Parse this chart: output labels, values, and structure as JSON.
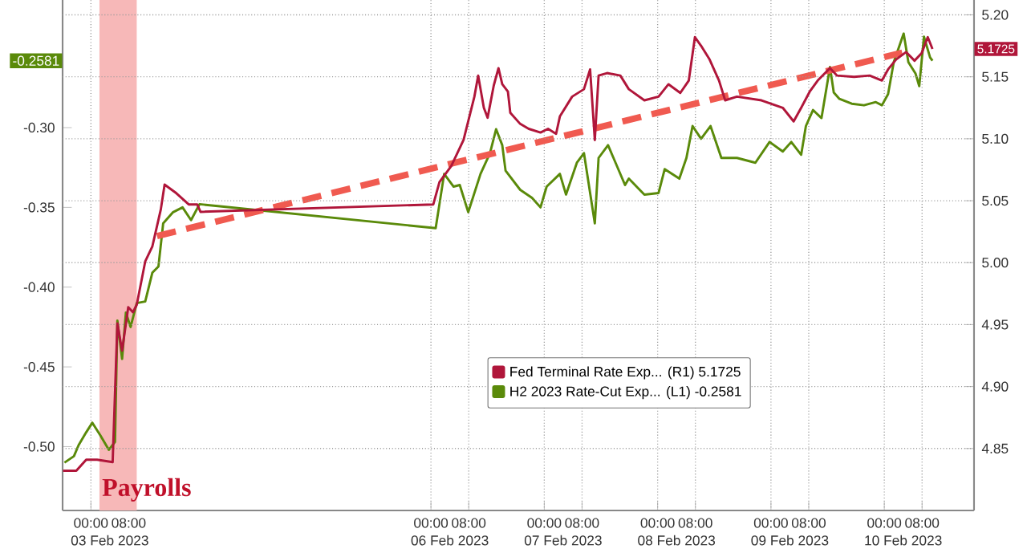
{
  "chart_data": {
    "type": "line",
    "xlim": [
      "2023-02-02T18:00",
      "2023-02-10T19:00"
    ],
    "xticks": [
      {
        "value": "2023-02-03T00:00",
        "label": "00:00"
      },
      {
        "value": "2023-02-03T08:00",
        "label": "08:00"
      },
      {
        "value": "2023-02-06T00:00",
        "label": "00:00"
      },
      {
        "value": "2023-02-06T08:00",
        "label": "08:00"
      },
      {
        "value": "2023-02-07T00:00",
        "label": "00:00"
      },
      {
        "value": "2023-02-07T08:00",
        "label": "08:00"
      },
      {
        "value": "2023-02-08T00:00",
        "label": "00:00"
      },
      {
        "value": "2023-02-08T08:00",
        "label": "08:00"
      },
      {
        "value": "2023-02-09T00:00",
        "label": "00:00"
      },
      {
        "value": "2023-02-09T08:00",
        "label": "08:00"
      },
      {
        "value": "2023-02-10T00:00",
        "label": "00:00"
      },
      {
        "value": "2023-02-10T08:00",
        "label": "08:00"
      }
    ],
    "x2lim": [
      "2023-02-02T18:00",
      "2023-02-10T19:00"
    ],
    "x2ticks": [
      {
        "value": "2023-02-03T04:00",
        "label": "03 Feb 2023"
      },
      {
        "value": "2023-02-06T04:00",
        "label": "06 Feb 2023"
      },
      {
        "value": "2023-02-07T04:00",
        "label": "07 Feb 2023"
      },
      {
        "value": "2023-02-08T04:00",
        "label": "08 Feb 2023"
      },
      {
        "value": "2023-02-09T04:00",
        "label": "09 Feb 2023"
      },
      {
        "value": "2023-02-10T04:00",
        "label": "10 Feb 2023"
      }
    ],
    "ylim": [
      -0.54,
      -0.22
    ],
    "yticks": [
      {
        "value": -0.5,
        "label": "-0.50"
      },
      {
        "value": -0.45,
        "label": "-0.45"
      },
      {
        "value": -0.4,
        "label": "-0.40"
      },
      {
        "value": -0.35,
        "label": "-0.35"
      },
      {
        "value": -0.3,
        "label": "-0.30"
      },
      -0.2581
    ],
    "y2lim": [
      4.8,
      5.212
    ],
    "y2ticks": [
      4.85,
      {
        "value": 4.9,
        "label": "4.90"
      },
      4.95,
      {
        "value": 5.0,
        "label": "5.00"
      },
      5.05,
      {
        "value": 5.1,
        "label": "5.10"
      },
      5.15,
      {
        "value": 5.2,
        "label": "5.20"
      },
      5.1725
    ],
    "grid": true,
    "legend": "bottom right",
    "bands": [
      {
        "axis": "x",
        "from": "2023-02-03T01:48",
        "to": "2023-02-03T09:42",
        "color": "#f7b8b8"
      }
    ],
    "annotations": [
      "Payrolls"
    ],
    "series": [
      {
        "name": "Fed Terminal Rate Exp... (R1) 5.1725",
        "color": "#b0163a",
        "axis": "y2",
        "x": [
          "2023-02-02T18:06",
          "2023-02-02T20:54",
          "2023-02-02T23:00",
          "2023-02-03T01:18",
          "2023-02-03T04:36",
          "2023-02-03T05:36",
          "2023-02-03T06:36",
          "2023-02-03T07:54",
          "2023-02-03T08:54",
          "2023-02-03T09:42",
          "2023-02-03T11:30",
          "2023-02-03T13:00",
          "2023-02-03T14:48",
          "2023-02-03T15:36",
          "2023-02-03T18:06",
          "2023-02-03T20:42",
          "2023-02-03T22:30",
          "2023-02-03T23:12",
          "2023-02-06T00:30",
          "2023-02-06T01:48",
          "2023-02-06T04:18",
          "2023-02-06T06:54",
          "2023-02-06T09:12",
          "2023-02-06T10:00",
          "2023-02-06T11:12",
          "2023-02-06T12:00",
          "2023-02-06T13:18",
          "2023-02-06T14:18",
          "2023-02-06T15:06",
          "2023-02-06T16:18",
          "2023-02-06T16:48",
          "2023-02-06T18:54",
          "2023-02-06T20:42",
          "2023-02-06T23:12",
          "2023-02-07T00:48",
          "2023-02-07T02:30",
          "2023-02-07T03:18",
          "2023-02-07T05:54",
          "2023-02-07T08:24",
          "2023-02-07T09:42",
          "2023-02-07T10:42",
          "2023-02-07T11:30",
          "2023-02-07T13:18",
          "2023-02-07T16:06",
          "2023-02-07T17:54",
          "2023-02-07T21:12",
          "2023-02-08T00:12",
          "2023-02-08T02:18",
          "2023-02-08T04:48",
          "2023-02-08T06:36",
          "2023-02-08T07:54",
          "2023-02-08T09:12",
          "2023-02-08T11:00",
          "2023-02-08T13:00",
          "2023-02-08T14:18",
          "2023-02-08T16:48",
          "2023-02-08T22:00",
          "2023-02-09T02:30",
          "2023-02-09T04:48",
          "2023-02-09T06:24",
          "2023-02-09T08:12",
          "2023-02-09T09:54",
          "2023-02-09T12:30",
          "2023-02-09T14:00",
          "2023-02-09T17:36",
          "2023-02-09T20:54",
          "2023-02-09T23:30",
          "2023-02-10T00:48",
          "2023-02-10T02:30",
          "2023-02-10T04:36",
          "2023-02-10T06:24",
          "2023-02-10T07:54",
          "2023-02-10T09:12",
          "2023-02-10T10:12"
        ],
        "values": [
          4.832,
          4.832,
          4.841,
          4.841,
          4.839,
          4.951,
          4.929,
          4.964,
          4.96,
          4.966,
          5.001,
          5.013,
          5.043,
          5.063,
          5.056,
          5.047,
          5.047,
          5.041,
          5.047,
          5.065,
          5.078,
          5.099,
          5.134,
          5.151,
          5.125,
          5.117,
          5.143,
          5.157,
          5.144,
          5.138,
          5.121,
          5.112,
          5.108,
          5.105,
          5.108,
          5.104,
          5.118,
          5.134,
          5.14,
          5.156,
          5.099,
          5.151,
          5.153,
          5.151,
          5.14,
          5.131,
          5.134,
          5.144,
          5.137,
          5.147,
          5.182,
          5.175,
          5.164,
          5.147,
          5.131,
          5.134,
          5.131,
          5.125,
          5.114,
          5.125,
          5.138,
          5.147,
          5.157,
          5.151,
          5.15,
          5.151,
          5.147,
          5.156,
          5.164,
          5.17,
          5.163,
          5.169,
          5.182,
          5.1725
        ]
      },
      {
        "name": "H2 2023 Rate-Cut Exp... (L1)   -0.2581",
        "color": "#5a8a0a",
        "x": [
          "2023-02-02T18:24",
          "2023-02-02T20:24",
          "2023-02-02T21:24",
          "2023-02-02T23:00",
          "2023-02-03T00:18",
          "2023-02-03T02:00",
          "2023-02-03T03:48",
          "2023-02-03T05:06",
          "2023-02-03T05:36",
          "2023-02-03T06:36",
          "2023-02-03T07:24",
          "2023-02-03T08:24",
          "2023-02-03T09:42",
          "2023-02-03T11:30",
          "2023-02-03T13:00",
          "2023-02-03T14:18",
          "2023-02-03T15:18",
          "2023-02-03T17:24",
          "2023-02-03T19:24",
          "2023-02-03T21:12",
          "2023-02-03T23:00",
          "2023-02-06T01:00",
          "2023-02-06T01:48",
          "2023-02-06T02:48",
          "2023-02-06T04:48",
          "2023-02-06T06:06",
          "2023-02-06T07:54",
          "2023-02-06T10:30",
          "2023-02-06T12:30",
          "2023-02-06T13:48",
          "2023-02-06T15:06",
          "2023-02-06T15:48",
          "2023-02-06T18:54",
          "2023-02-06T21:24",
          "2023-02-06T23:12",
          "2023-02-07T00:30",
          "2023-02-07T03:18",
          "2023-02-07T04:36",
          "2023-02-07T06:54",
          "2023-02-07T08:24",
          "2023-02-07T10:42",
          "2023-02-07T11:30",
          "2023-02-07T13:30",
          "2023-02-07T17:06",
          "2023-02-07T17:54",
          "2023-02-07T21:12",
          "2023-02-08T00:12",
          "2023-02-08T01:30",
          "2023-02-08T04:36",
          "2023-02-08T06:06",
          "2023-02-08T07:24",
          "2023-02-08T09:12",
          "2023-02-08T11:12",
          "2023-02-08T13:30",
          "2023-02-08T16:48",
          "2023-02-08T20:42",
          "2023-02-08T23:42",
          "2023-02-09T02:30",
          "2023-02-09T04:18",
          "2023-02-09T06:24",
          "2023-02-09T07:24",
          "2023-02-09T08:54",
          "2023-02-09T10:42",
          "2023-02-09T12:30",
          "2023-02-09T13:18",
          "2023-02-09T14:30",
          "2023-02-09T17:06",
          "2023-02-09T19:42",
          "2023-02-09T22:12",
          "2023-02-09T23:30",
          "2023-02-10T00:48",
          "2023-02-10T02:00",
          "2023-02-10T04:06",
          "2023-02-10T05:06",
          "2023-02-10T06:36",
          "2023-02-10T07:24",
          "2023-02-10T08:24",
          "2023-02-10T09:42",
          "2023-02-10T10:12"
        ],
        "values": [
          -0.51,
          -0.506,
          -0.499,
          -0.491,
          -0.485,
          -0.493,
          -0.502,
          -0.497,
          -0.421,
          -0.445,
          -0.416,
          -0.425,
          -0.41,
          -0.409,
          -0.391,
          -0.387,
          -0.36,
          -0.353,
          -0.35,
          -0.358,
          -0.348,
          -0.363,
          -0.348,
          -0.329,
          -0.337,
          -0.336,
          -0.353,
          -0.329,
          -0.316,
          -0.301,
          -0.311,
          -0.327,
          -0.339,
          -0.344,
          -0.35,
          -0.337,
          -0.329,
          -0.342,
          -0.322,
          -0.316,
          -0.36,
          -0.319,
          -0.311,
          -0.336,
          -0.332,
          -0.342,
          -0.341,
          -0.326,
          -0.332,
          -0.319,
          -0.299,
          -0.307,
          -0.299,
          -0.319,
          -0.319,
          -0.322,
          -0.309,
          -0.315,
          -0.309,
          -0.317,
          -0.299,
          -0.289,
          -0.294,
          -0.262,
          -0.278,
          -0.282,
          -0.285,
          -0.286,
          -0.284,
          -0.286,
          -0.279,
          -0.259,
          -0.241,
          -0.259,
          -0.266,
          -0.274,
          -0.243,
          -0.256,
          -0.2581
        ]
      },
      {
        "type": "line",
        "color": "#f05a50",
        "line_style": "dashed",
        "x": [
          "2023-02-03T14:00",
          "2023-02-10T03:48"
        ],
        "values": [
          -0.368,
          -0.253
        ]
      }
    ]
  }
}
